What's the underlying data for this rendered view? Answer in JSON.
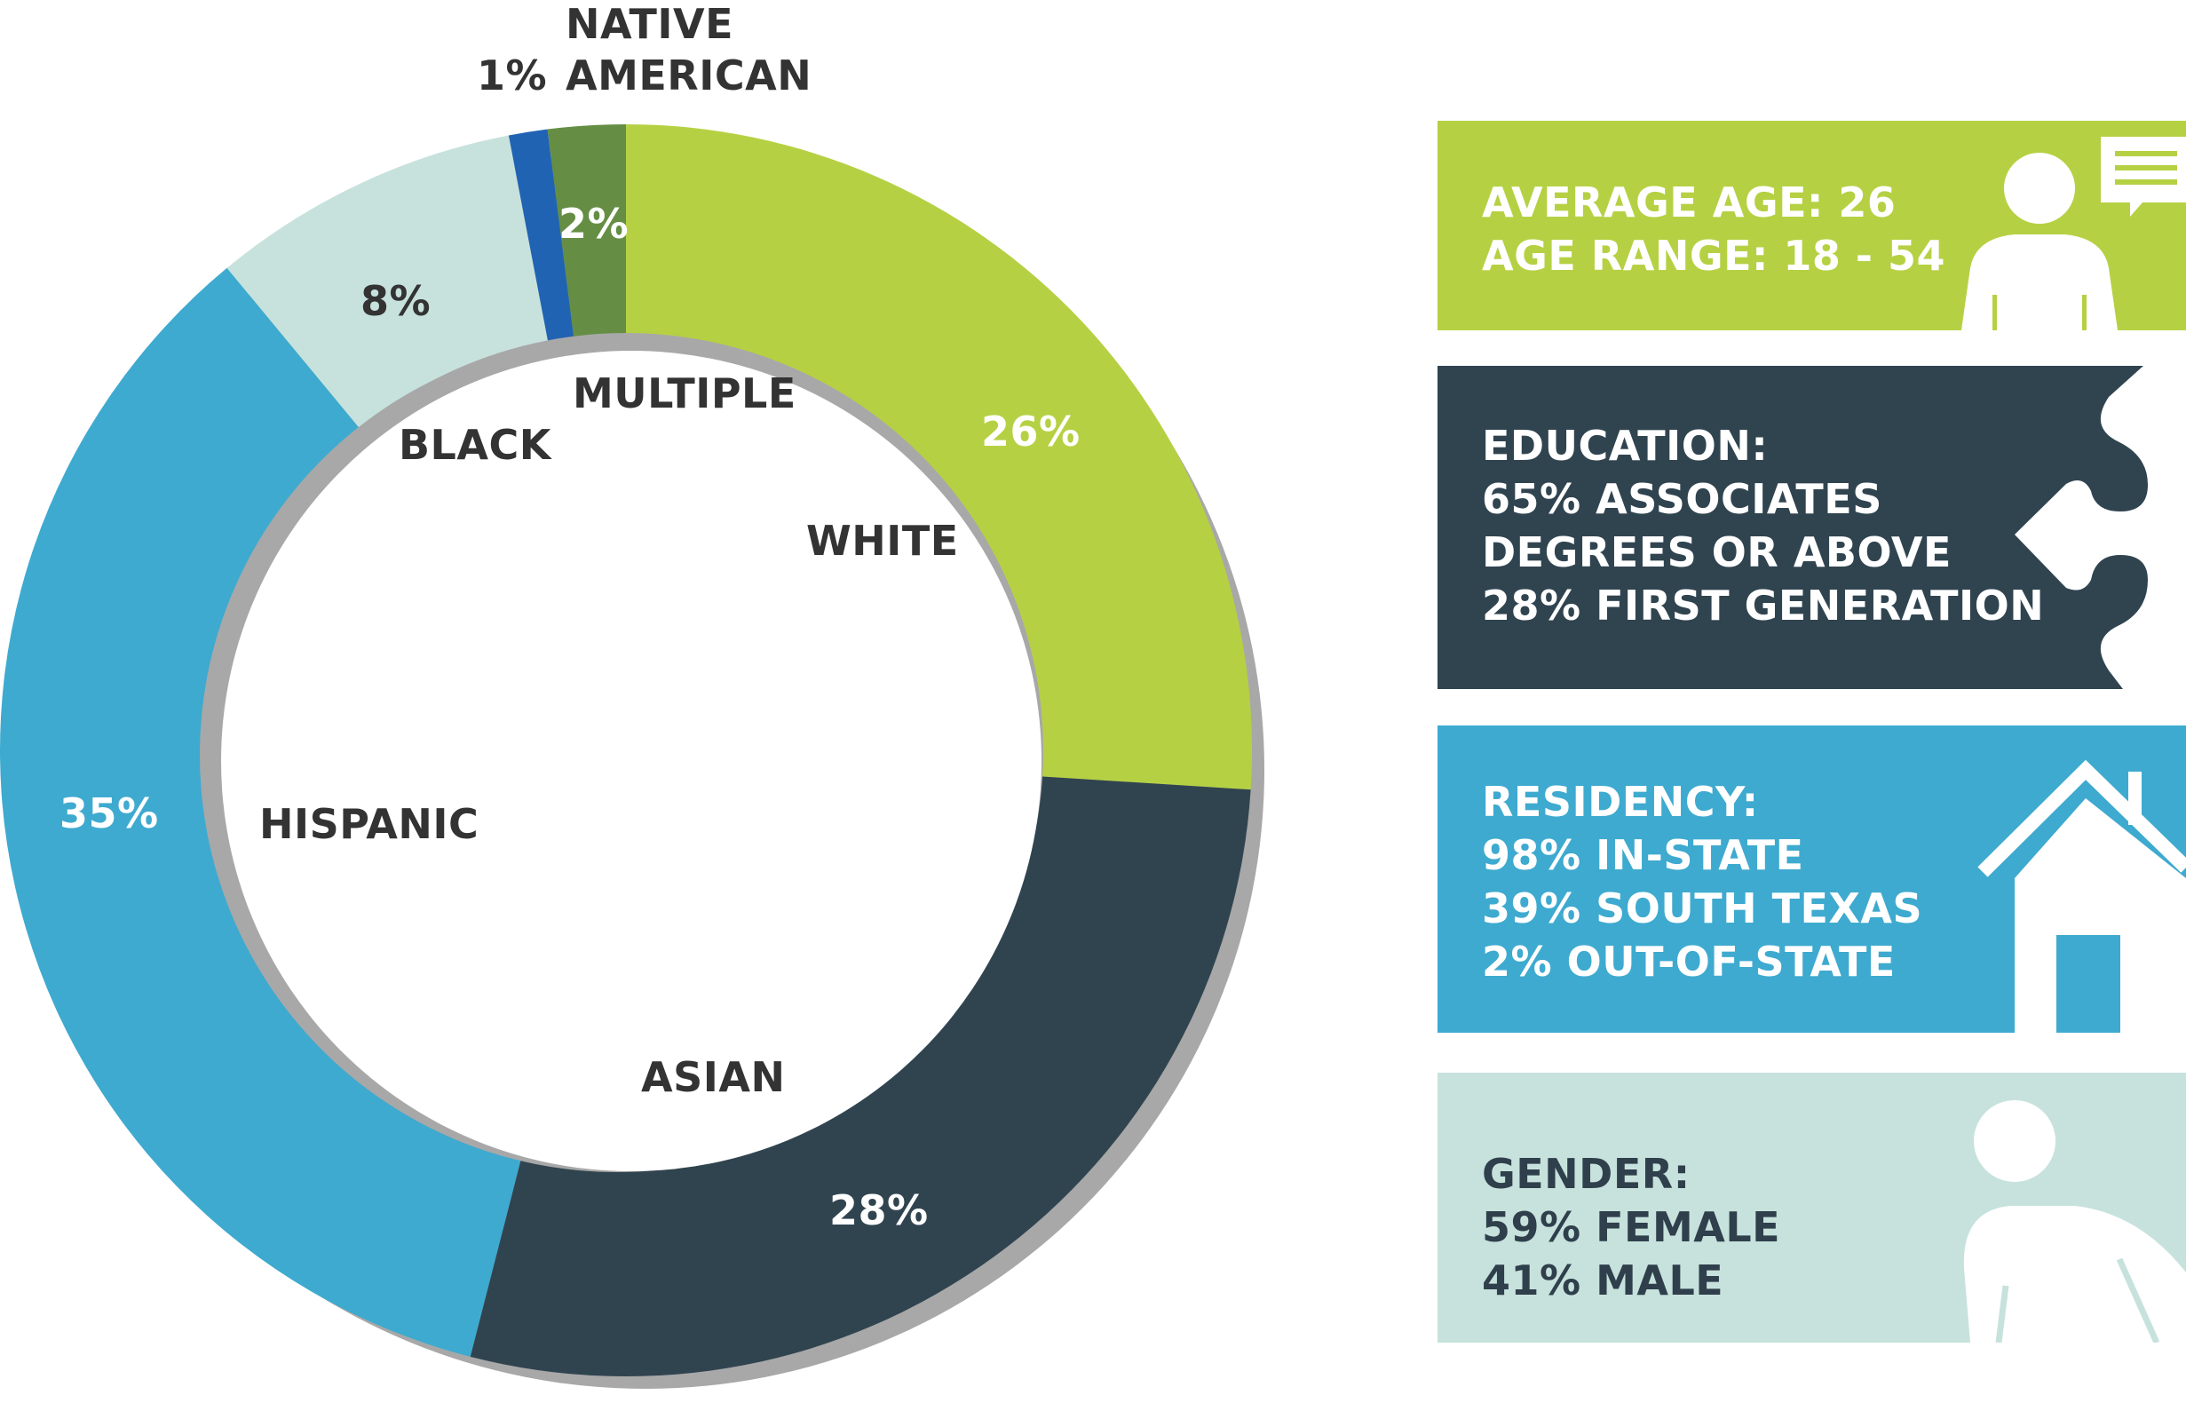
{
  "chart_data": {
    "type": "pie",
    "variant": "donut",
    "slices": [
      {
        "category": "WHITE",
        "value": 26,
        "value_label": "26%",
        "color": "#b5d143"
      },
      {
        "category": "ASIAN",
        "value": 28,
        "value_label": "28%",
        "color": "#304450"
      },
      {
        "category": "HISPANIC",
        "value": 35,
        "value_label": "35%",
        "color": "#3eaacf"
      },
      {
        "category": "BLACK",
        "value": 8,
        "value_label": "8%",
        "color": "#c7e2dc"
      },
      {
        "category": "NATIVE AMERICAN",
        "value": 1,
        "value_label": "1%",
        "color": "#2163b3"
      },
      {
        "category": "MULTIPLE",
        "value": 2,
        "value_label": "2%",
        "color": "#658e44"
      }
    ],
    "native_label": {
      "line1": "NATIVE",
      "line2": "AMERICAN"
    },
    "legend": "none"
  },
  "panels": {
    "age": {
      "lines": [
        "AVERAGE AGE: 26",
        "AGE RANGE: 18 - 54"
      ],
      "color": "#b5d143",
      "icon": "person-speech-icon"
    },
    "education": {
      "lines": [
        "EDUCATION:",
        "65% ASSOCIATES",
        "DEGREES OR ABOVE",
        "28% FIRST GENERATION"
      ],
      "color": "#304450",
      "icon": "puzzle-piece-icon"
    },
    "residency": {
      "lines": [
        "RESIDENCY:",
        "98% IN-STATE",
        "39% SOUTH TEXAS",
        "2% OUT-OF-STATE"
      ],
      "color": "#3eaacf",
      "icon": "house-icon"
    },
    "gender": {
      "lines": [
        "GENDER:",
        "59% FEMALE",
        "41% MALE"
      ],
      "color": "#c7e2dc",
      "icon": "person-icon"
    }
  }
}
